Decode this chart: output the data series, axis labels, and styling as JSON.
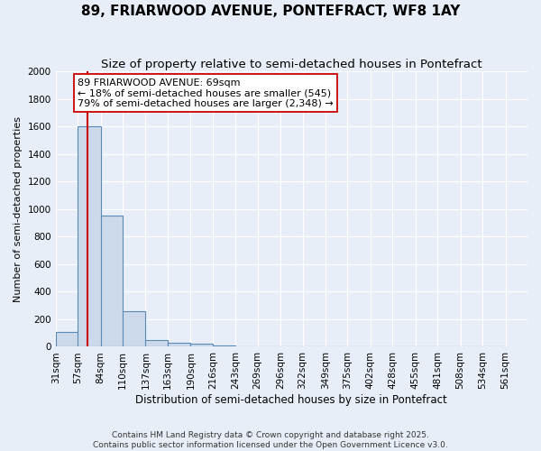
{
  "title": "89, FRIARWOOD AVENUE, PONTEFRACT, WF8 1AY",
  "subtitle": "Size of property relative to semi-detached houses in Pontefract",
  "xlabel": "Distribution of semi-detached houses by size in Pontefract",
  "ylabel": "Number of semi-detached properties",
  "bin_labels": [
    "31sqm",
    "57sqm",
    "84sqm",
    "110sqm",
    "137sqm",
    "163sqm",
    "190sqm",
    "216sqm",
    "243sqm",
    "269sqm",
    "296sqm",
    "322sqm",
    "349sqm",
    "375sqm",
    "402sqm",
    "428sqm",
    "455sqm",
    "481sqm",
    "508sqm",
    "534sqm",
    "561sqm"
  ],
  "bin_edges": [
    31,
    57,
    84,
    110,
    137,
    163,
    190,
    216,
    243,
    269,
    296,
    322,
    349,
    375,
    402,
    428,
    455,
    481,
    508,
    534,
    561
  ],
  "bar_heights": [
    110,
    1600,
    950,
    260,
    50,
    30,
    20,
    10,
    0,
    0,
    0,
    0,
    0,
    0,
    0,
    0,
    0,
    0,
    0,
    0
  ],
  "bar_color": "#ccd9ea",
  "bar_edgecolor": "#5a8ab8",
  "property_size": 69,
  "property_line_color": "#cc0000",
  "annotation_line1": "89 FRIARWOOD AVENUE: 69sqm",
  "annotation_line2": "← 18% of semi-detached houses are smaller (545)",
  "annotation_line3": "79% of semi-detached houses are larger (2,348) →",
  "annotation_box_edgecolor": "#cc0000",
  "annotation_box_facecolor": "#ffffff",
  "ylim": [
    0,
    2000
  ],
  "yticks": [
    0,
    200,
    400,
    600,
    800,
    1000,
    1200,
    1400,
    1600,
    1800,
    2000
  ],
  "background_color": "#e8eef8",
  "grid_color": "#ffffff",
  "footer_text": "Contains HM Land Registry data © Crown copyright and database right 2025.\nContains public sector information licensed under the Open Government Licence v3.0.",
  "title_fontsize": 11,
  "subtitle_fontsize": 9.5,
  "ylabel_fontsize": 8,
  "xlabel_fontsize": 8.5,
  "tick_fontsize": 7.5,
  "footer_fontsize": 6.5
}
